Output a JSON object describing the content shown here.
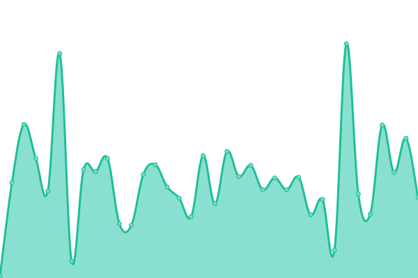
{
  "chart_data": {
    "type": "area",
    "title": "",
    "xlabel": "",
    "ylabel": "",
    "x": [
      0,
      1,
      2,
      3,
      4,
      5,
      6,
      7,
      8,
      9,
      10,
      11,
      12,
      13,
      14,
      15,
      16,
      17,
      18,
      19,
      20,
      21,
      22,
      23,
      24,
      25,
      26,
      27,
      28,
      29,
      30,
      31,
      32,
      33,
      34,
      35
    ],
    "values": [
      3,
      137,
      221,
      172,
      125,
      323,
      24,
      156,
      153,
      172,
      78,
      76,
      149,
      163,
      131,
      115,
      88,
      176,
      107,
      182,
      146,
      162,
      127,
      144,
      127,
      145,
      91,
      113,
      40,
      337,
      121,
      92,
      220,
      152,
      201,
      116
    ],
    "ylim": [
      0,
      400
    ],
    "grid": false,
    "axes_visible": false,
    "smooth": true,
    "colors": {
      "line": "#1dbf98",
      "fill": "#8ae0d0",
      "marker": "#6fdcc4"
    }
  }
}
